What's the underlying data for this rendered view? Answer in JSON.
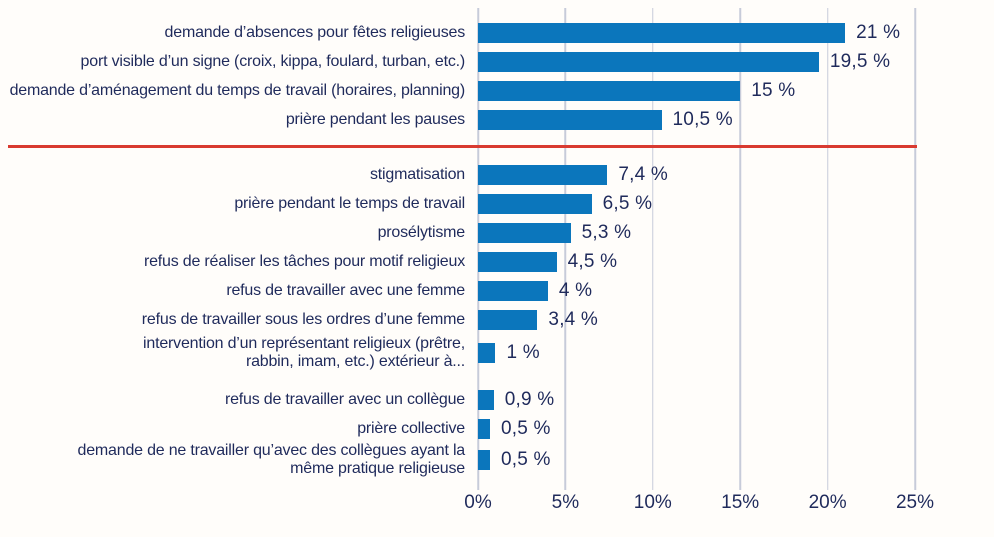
{
  "chart_data": {
    "type": "bar",
    "orientation": "horizontal",
    "title": "",
    "xlabel": "",
    "ylabel": "",
    "xlim": [
      0,
      25
    ],
    "grid": "vertical-on",
    "bar_color": "#0B76BC",
    "divider_color": "#D93A30",
    "text_color": "#1F2A5B",
    "x_ticks": [
      "0%",
      "5%",
      "10%",
      "15%",
      "20%",
      "25%"
    ],
    "rows": [
      {
        "label": "demande d’absences pour fêtes religieuses",
        "value": 21,
        "value_label": "21 %"
      },
      {
        "label": "port visible d’un signe (croix, kippa, foulard, turban, etc.)",
        "value": 19.5,
        "value_label": "19,5 %"
      },
      {
        "label": "demande d’aménagement du temps de travail (horaires, planning)",
        "value": 15,
        "value_label": "15 %"
      },
      {
        "label": "prière pendant les pauses",
        "value": 10.5,
        "value_label": "10,5 %"
      },
      {
        "label": "stigmatisation",
        "value": 7.4,
        "value_label": "7,4 %"
      },
      {
        "label": "prière pendant le temps de travail",
        "value": 6.5,
        "value_label": "6,5 %"
      },
      {
        "label": "prosélytisme",
        "value": 5.3,
        "value_label": "5,3 %"
      },
      {
        "label": "refus de réaliser les tâches pour motif religieux",
        "value": 4.5,
        "value_label": "4,5 %"
      },
      {
        "label": "refus de travailler avec une femme",
        "value": 4,
        "value_label": "4 %"
      },
      {
        "label": "refus de travailler sous les ordres d’une femme",
        "value": 3.4,
        "value_label": "3,4 %"
      },
      {
        "label": "intervention d’un représentant religieux (prêtre, rabbin, imam, etc.) extérieur à...",
        "value": 1,
        "value_label": "1 %"
      },
      {
        "label": "refus de travailler avec un collègue",
        "value": 0.9,
        "value_label": "0,9 %"
      },
      {
        "label": "prière collective",
        "value": 0.5,
        "value_label": "0,5 %"
      },
      {
        "label": "demande de ne travailler qu’avec des collègues ayant la même pratique religieuse",
        "value": 0.5,
        "value_label": "0,5 %"
      }
    ]
  }
}
